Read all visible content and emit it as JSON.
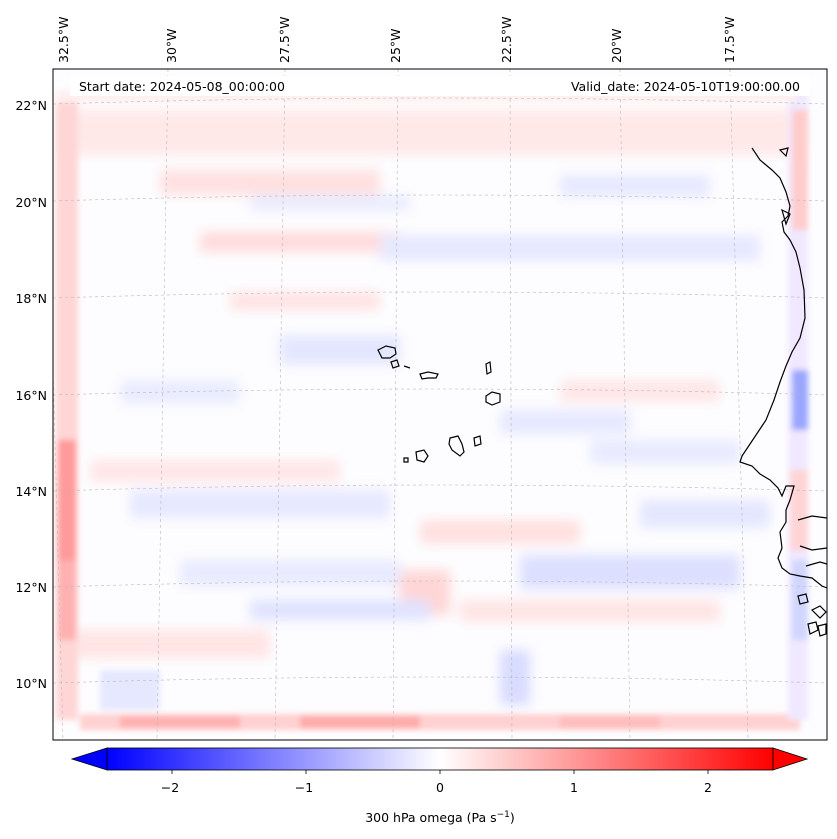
{
  "map": {
    "start_label": "Start date: 2024-05-08_00:00:00",
    "valid_label": "Valid_date: 2024-05-10T19:00:00.00",
    "lon_ticks": [
      "32.5°W",
      "30°W",
      "27.5°W",
      "25°W",
      "22.5°W",
      "20°W",
      "17.5°W"
    ],
    "lat_ticks": [
      "22°N",
      "20°N",
      "18°N",
      "16°N",
      "14°N",
      "12°N",
      "10°N"
    ],
    "field": "300 hPa omega",
    "colormap": "bwr",
    "colors": {
      "negative": "#0000ff",
      "neutral": "#ffffff",
      "positive": "#ff0000",
      "coastline": "#000000",
      "gridline": "#b0b0b0"
    }
  },
  "colorbar": {
    "ticks": [
      "−2",
      "−1",
      "0",
      "1",
      "2"
    ],
    "label": "300 hPa omega (Pa s",
    "label_sup": "−1",
    "label_end": ")"
  }
}
